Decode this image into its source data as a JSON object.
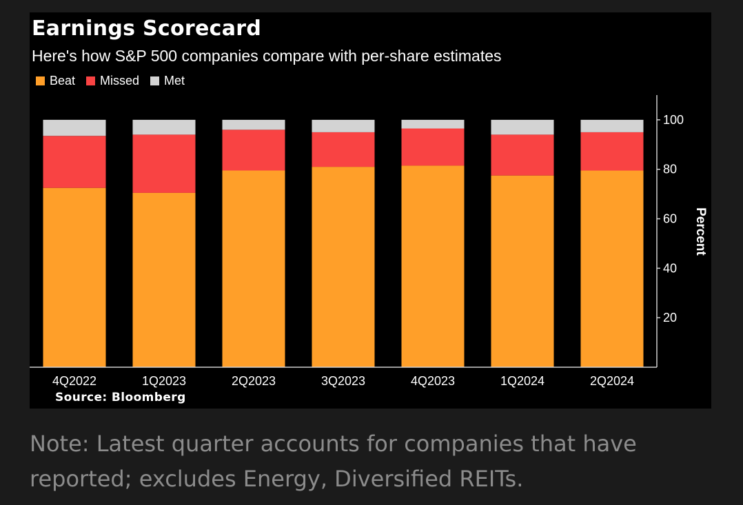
{
  "chart_data": {
    "type": "bar",
    "stacked": true,
    "title": "Earnings Scorecard",
    "subtitle": "Here's how S&P 500 companies compare with per-share estimates",
    "categories": [
      "4Q2022",
      "1Q2023",
      "2Q2023",
      "3Q2023",
      "4Q2023",
      "1Q2024",
      "2Q2024"
    ],
    "series": [
      {
        "name": "Beat",
        "color": "#ff9f29",
        "values": [
          72.5,
          70.5,
          79.5,
          81,
          81.5,
          77.5,
          79.5
        ]
      },
      {
        "name": "Missed",
        "color": "#f94343",
        "values": [
          21,
          23.5,
          16.5,
          14,
          15,
          16.5,
          15.5
        ]
      },
      {
        "name": "Met",
        "color": "#d3d3d3",
        "values": [
          6.5,
          6,
          4,
          5,
          3.5,
          6,
          5
        ]
      }
    ],
    "ylabel": "Percent",
    "y_ticks": [
      20,
      40,
      60,
      80,
      100
    ],
    "ylim": [
      0,
      110
    ],
    "y_axis_position": "right",
    "legend_position": "top-left",
    "grid": false,
    "source": "Source: Bloomberg"
  },
  "note": "Note: Latest quarter accounts for companies that have reported; excludes Energy, Diversified REITs."
}
